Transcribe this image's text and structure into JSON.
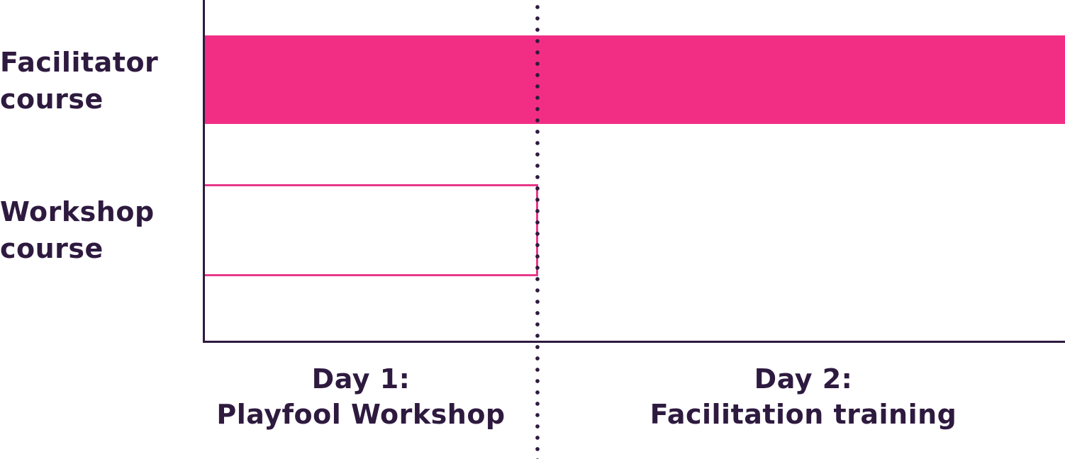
{
  "rows": [
    {
      "line1": "Facilitator",
      "line2": "course"
    },
    {
      "line1": "Workshop",
      "line2": "course"
    }
  ],
  "days": [
    {
      "line1": "Day 1:",
      "line2": "Playfool Workshop"
    },
    {
      "line1": "Day 2:",
      "line2": "Facilitation training"
    }
  ],
  "colors": {
    "text": "#2e1a3f",
    "accent": "#f22e84",
    "outline": "#e8388a",
    "background": "#ffffff"
  },
  "bars": [
    {
      "row": "Facilitator course",
      "covers": [
        "Day 1",
        "Day 2"
      ],
      "style": "filled"
    },
    {
      "row": "Workshop course",
      "covers": [
        "Day 1"
      ],
      "style": "outline"
    }
  ]
}
